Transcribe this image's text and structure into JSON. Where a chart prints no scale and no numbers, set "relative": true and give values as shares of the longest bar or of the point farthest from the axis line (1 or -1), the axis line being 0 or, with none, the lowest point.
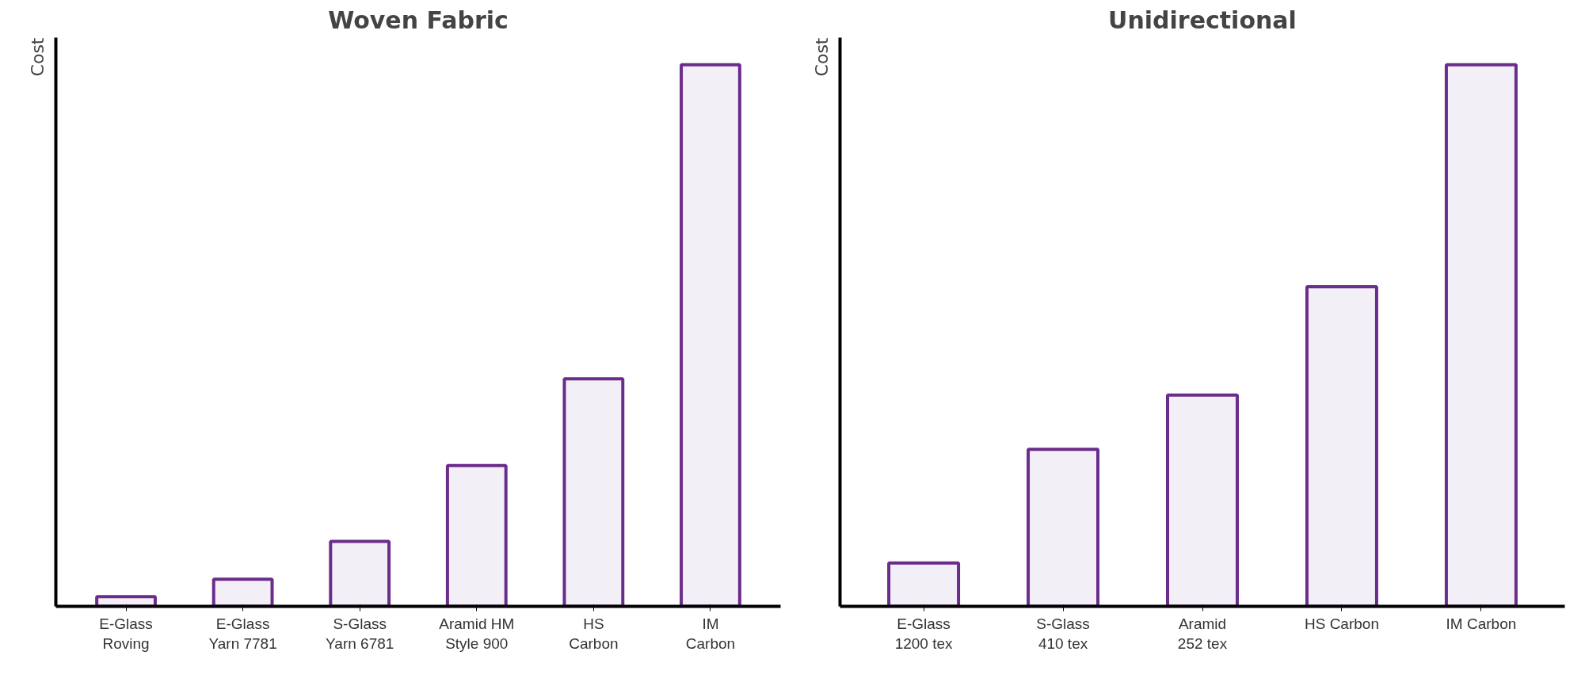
{
  "chart_data": [
    {
      "type": "bar",
      "title": "Woven Fabric",
      "ylabel": "Cost",
      "relative": true,
      "tick_labels": "x",
      "grid": false,
      "categories": [
        "E-Glass\nRoving",
        "E-Glass\nYarn 7781",
        "S-Glass\nYarn 6781",
        "Aramid HM\nStyle 900",
        "HS\nCarbon",
        "IM\nCarbon"
      ],
      "series": [
        {
          "color": "#6b2d8b",
          "values": [
            0.018,
            0.05,
            0.12,
            0.26,
            0.42,
            1
          ]
        }
      ]
    },
    {
      "type": "bar",
      "title": "Unidirectional",
      "ylabel": "Cost",
      "relative": true,
      "tick_labels": "x",
      "grid": false,
      "categories": [
        "E-Glass\n1200 tex",
        "S-Glass\n410 tex",
        "Aramid\n252 tex",
        "HS Carbon",
        "IM Carbon"
      ],
      "series": [
        {
          "color": "#6b2d8b",
          "values": [
            0.08,
            0.29,
            0.39,
            0.59,
            1
          ]
        }
      ]
    }
  ]
}
